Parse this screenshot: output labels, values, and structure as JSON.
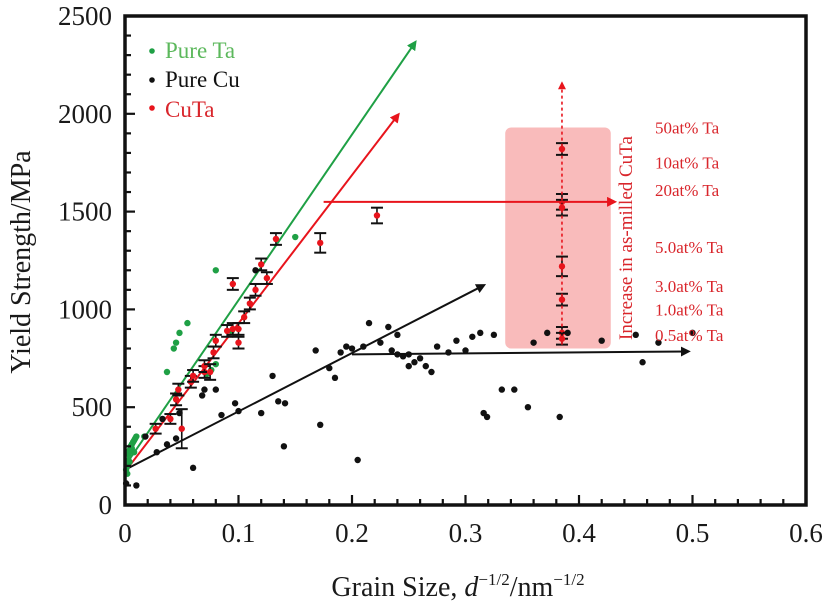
{
  "chart_data": {
    "type": "scatter",
    "title": "",
    "xlabel": "Grain Size, d^-1/2/nm^-1/2",
    "xlabel_parts": {
      "main": "Grain Size, ",
      "var": "d",
      "sup1": "−1/2",
      "unit": "/nm",
      "sup2": "−1/2"
    },
    "ylabel": "Yield Strength/MPa",
    "xlim": [
      0,
      0.6
    ],
    "ylim": [
      0,
      2500
    ],
    "x_ticks": [
      0,
      0.1,
      0.2,
      0.3,
      0.4,
      0.5,
      0.6
    ],
    "x_tick_labels": [
      "0",
      "0.1",
      "0.2",
      "0.3",
      "0.4",
      "0.5",
      "0.6"
    ],
    "y_ticks": [
      0,
      500,
      1000,
      1500,
      2000,
      2500
    ],
    "y_tick_labels": [
      "0",
      "500",
      "1000",
      "1500",
      "2000",
      "2500"
    ],
    "x_minor_step": 0.02,
    "y_minor_step": 100,
    "grid": false,
    "legend_position": "top-left",
    "legend": [
      {
        "label": "Pure Ta",
        "color": "#1fa045",
        "text_color": "#5cb85c"
      },
      {
        "label": "Pure Cu",
        "color": "#111111",
        "text_color": "#111111"
      },
      {
        "label": "CuTa",
        "color": "#e8141c",
        "text_color": "#d9262c"
      }
    ],
    "series": [
      {
        "name": "Pure Ta",
        "color": "#1fa045",
        "points": [
          [
            0.001,
            180
          ],
          [
            0.002,
            200
          ],
          [
            0.003,
            230
          ],
          [
            0.003,
            260
          ],
          [
            0.004,
            280
          ],
          [
            0.005,
            300
          ],
          [
            0.006,
            310
          ],
          [
            0.007,
            320
          ],
          [
            0.008,
            330
          ],
          [
            0.009,
            340
          ],
          [
            0.004,
            220
          ],
          [
            0.002,
            160
          ],
          [
            0.01,
            350
          ],
          [
            0.006,
            290
          ],
          [
            0.008,
            270
          ],
          [
            0.017,
            350
          ],
          [
            0.037,
            680
          ],
          [
            0.043,
            800
          ],
          [
            0.045,
            830
          ],
          [
            0.048,
            880
          ],
          [
            0.055,
            930
          ],
          [
            0.08,
            1200
          ],
          [
            0.072,
            670
          ],
          [
            0.076,
            690
          ],
          [
            0.08,
            720
          ],
          [
            0.094,
            890
          ],
          [
            0.15,
            1370
          ]
        ]
      },
      {
        "name": "Pure Cu",
        "color": "#111111",
        "points": [
          [
            0.001,
            110
          ],
          [
            0.01,
            100
          ],
          [
            0.018,
            350
          ],
          [
            0.028,
            270
          ],
          [
            0.037,
            310
          ],
          [
            0.045,
            340
          ],
          [
            0.033,
            440
          ],
          [
            0.048,
            470
          ],
          [
            0.06,
            190
          ],
          [
            0.068,
            560
          ],
          [
            0.07,
            590
          ],
          [
            0.08,
            590
          ],
          [
            0.1,
            480
          ],
          [
            0.097,
            520
          ],
          [
            0.085,
            460
          ],
          [
            0.115,
            1200
          ],
          [
            0.13,
            660
          ],
          [
            0.14,
            300
          ],
          [
            0.12,
            470
          ],
          [
            0.135,
            530
          ],
          [
            0.141,
            520
          ],
          [
            0.168,
            790
          ],
          [
            0.172,
            410
          ],
          [
            0.18,
            700
          ],
          [
            0.185,
            650
          ],
          [
            0.19,
            780
          ],
          [
            0.2,
            800
          ],
          [
            0.205,
            230
          ],
          [
            0.195,
            810
          ],
          [
            0.21,
            810
          ],
          [
            0.215,
            930
          ],
          [
            0.225,
            830
          ],
          [
            0.232,
            910
          ],
          [
            0.235,
            790
          ],
          [
            0.24,
            870
          ],
          [
            0.24,
            770
          ],
          [
            0.245,
            760
          ],
          [
            0.25,
            770
          ],
          [
            0.25,
            710
          ],
          [
            0.255,
            730
          ],
          [
            0.26,
            750
          ],
          [
            0.265,
            710
          ],
          [
            0.27,
            680
          ],
          [
            0.275,
            810
          ],
          [
            0.285,
            780
          ],
          [
            0.292,
            840
          ],
          [
            0.3,
            790
          ],
          [
            0.306,
            860
          ],
          [
            0.313,
            880
          ],
          [
            0.316,
            470
          ],
          [
            0.319,
            450
          ],
          [
            0.325,
            870
          ],
          [
            0.332,
            590
          ],
          [
            0.343,
            590
          ],
          [
            0.355,
            500
          ],
          [
            0.36,
            830
          ],
          [
            0.372,
            880
          ],
          [
            0.383,
            450
          ],
          [
            0.39,
            880
          ],
          [
            0.42,
            840
          ],
          [
            0.45,
            870
          ],
          [
            0.456,
            730
          ],
          [
            0.47,
            830
          ],
          [
            0.5,
            880
          ]
        ]
      },
      {
        "name": "CuTa",
        "color": "#e8141c",
        "error_bars": true,
        "points": [
          {
            "x": 0.027,
            "y": 390,
            "err": 25
          },
          {
            "x": 0.04,
            "y": 440,
            "err": 25
          },
          {
            "x": 0.05,
            "y": 390,
            "err": 100
          },
          {
            "x": 0.045,
            "y": 540,
            "err": 30
          },
          {
            "x": 0.047,
            "y": 590,
            "err": 30
          },
          {
            "x": 0.058,
            "y": 630,
            "err": 30
          },
          {
            "x": 0.06,
            "y": 660,
            "err": 30
          },
          {
            "x": 0.07,
            "y": 680,
            "err": 30
          },
          {
            "x": 0.07,
            "y": 710,
            "err": 30
          },
          {
            "x": 0.075,
            "y": 680,
            "err": 40
          },
          {
            "x": 0.078,
            "y": 780,
            "err": 30
          },
          {
            "x": 0.08,
            "y": 840,
            "err": 30
          },
          {
            "x": 0.09,
            "y": 890,
            "err": 30
          },
          {
            "x": 0.095,
            "y": 900,
            "err": 30
          },
          {
            "x": 0.1,
            "y": 830,
            "err": 30
          },
          {
            "x": 0.1,
            "y": 900,
            "err": 30
          },
          {
            "x": 0.105,
            "y": 960,
            "err": 30
          },
          {
            "x": 0.11,
            "y": 1030,
            "err": 30
          },
          {
            "x": 0.095,
            "y": 1130,
            "err": 30
          },
          {
            "x": 0.115,
            "y": 1100,
            "err": 30
          },
          {
            "x": 0.12,
            "y": 1230,
            "err": 30
          },
          {
            "x": 0.125,
            "y": 1160,
            "err": 30
          },
          {
            "x": 0.133,
            "y": 1360,
            "err": 30
          },
          {
            "x": 0.172,
            "y": 1340,
            "err": 50
          },
          {
            "x": 0.222,
            "y": 1480,
            "err": 40
          },
          {
            "x": 0.385,
            "y": 1820,
            "err": 30
          },
          {
            "x": 0.385,
            "y": 1550,
            "err": 40
          },
          {
            "x": 0.385,
            "y": 1520,
            "err": 40
          },
          {
            "x": 0.385,
            "y": 1220,
            "err": 50
          },
          {
            "x": 0.385,
            "y": 1050,
            "err": 30
          },
          {
            "x": 0.385,
            "y": 880,
            "err": 30
          },
          {
            "x": 0.385,
            "y": 850,
            "err": 30
          }
        ]
      }
    ],
    "fit_lines": [
      {
        "name": "Pure Ta fit",
        "color": "#1fa045",
        "from": [
          0,
          200
        ],
        "to": [
          0.255,
          2360
        ],
        "arrow": true
      },
      {
        "name": "CuTa fit",
        "color": "#e8141c",
        "from": [
          0,
          170
        ],
        "to": [
          0.24,
          1990
        ],
        "arrow": true
      },
      {
        "name": "Pure Cu fit",
        "color": "#111111",
        "from": [
          0,
          180
        ],
        "to": [
          0.315,
          1120
        ],
        "arrow": true
      }
    ],
    "annotations": {
      "highlight_box": {
        "x_range": [
          0.335,
          0.428
        ],
        "y_range": [
          800,
          1930
        ],
        "color": "#f8b4b4"
      },
      "red_horizontal_arrow": {
        "from": [
          0.175,
          1550
        ],
        "to": [
          0.43,
          1550
        ],
        "color": "#e8141c"
      },
      "black_horizontal_arrow": {
        "from": [
          0.2,
          770
        ],
        "to": [
          0.495,
          785
        ],
        "color": "#111111"
      },
      "red_dotted_vertical_arrow": {
        "x": 0.385,
        "from": 820,
        "to": 2150,
        "color": "#e8141c"
      },
      "vertical_label": "Increase in as-milled CuTa",
      "composition_labels": [
        {
          "text": "50at% Ta",
          "y": 1930
        },
        {
          "text": "10at% Ta",
          "y": 1750
        },
        {
          "text": "20at% Ta",
          "y": 1610
        },
        {
          "text": "5.0at% Ta",
          "y": 1320
        },
        {
          "text": "3.0at% Ta",
          "y": 1120
        },
        {
          "text": "1.0at% Ta",
          "y": 1000
        },
        {
          "text": "0.5at% Ta",
          "y": 870
        }
      ],
      "label_color": "#d9262c"
    }
  }
}
